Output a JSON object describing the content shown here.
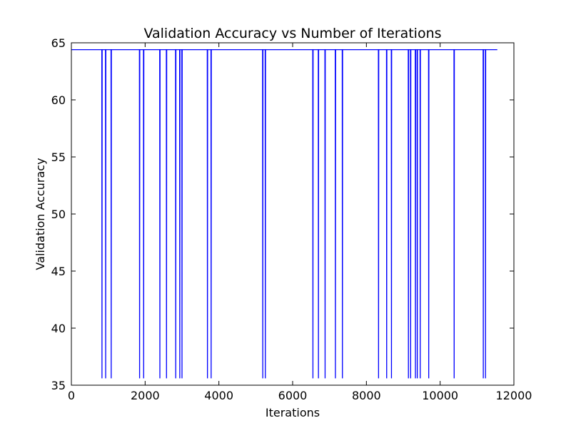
{
  "chart_data": {
    "type": "line",
    "title": "Validation Accuracy vs Number of Iterations",
    "xlabel": "Iterations",
    "ylabel": "Validation Accuracy",
    "xlim": [
      0,
      12000
    ],
    "ylim": [
      35,
      65
    ],
    "xticks": [
      0,
      2000,
      4000,
      6000,
      8000,
      10000,
      12000
    ],
    "yticks": [
      35,
      40,
      45,
      50,
      55,
      60,
      65
    ],
    "grid": false,
    "legend": false,
    "series": [
      {
        "name": "validation accuracy",
        "color": "#0000ff",
        "baseline_value": 64.4,
        "drop_value": 35.6,
        "x_start": 0,
        "x_end": 11550,
        "drop_iterations": [
          830,
          930,
          1080,
          1850,
          1960,
          2400,
          2580,
          2830,
          2940,
          3000,
          3690,
          3790,
          5190,
          5260,
          6550,
          6700,
          6880,
          7160,
          7350,
          8330,
          8550,
          8680,
          9140,
          9200,
          9330,
          9380,
          9460,
          9690,
          10380,
          11170,
          11230
        ]
      }
    ]
  }
}
